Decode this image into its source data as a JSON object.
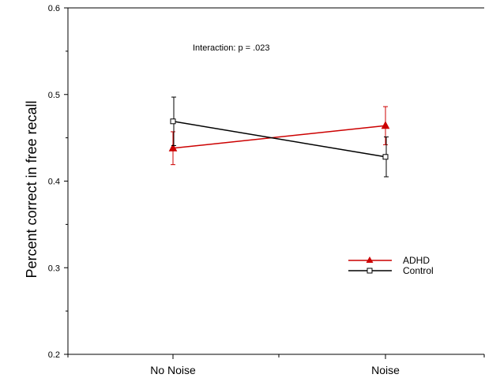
{
  "chart_data": {
    "type": "line",
    "title": "",
    "xlabel": "",
    "ylabel": "Percent correct in free recall",
    "categories": [
      "No Noise",
      "Noise"
    ],
    "ylim": [
      0.2,
      0.6
    ],
    "yticks": [
      "0.2",
      "0.3",
      "0.4",
      "0.5",
      "0.6"
    ],
    "annotation": "Interaction: p = .023",
    "legend_position": "right",
    "grid": false,
    "series": [
      {
        "name": "ADHD",
        "color": "#cc0000",
        "marker": "filled-triangle",
        "values": [
          0.438,
          0.464
        ],
        "error": [
          0.019,
          0.022
        ]
      },
      {
        "name": "Control",
        "color": "#000000",
        "marker": "open-square",
        "values": [
          0.469,
          0.428
        ],
        "error": [
          0.028,
          0.023
        ]
      }
    ]
  }
}
